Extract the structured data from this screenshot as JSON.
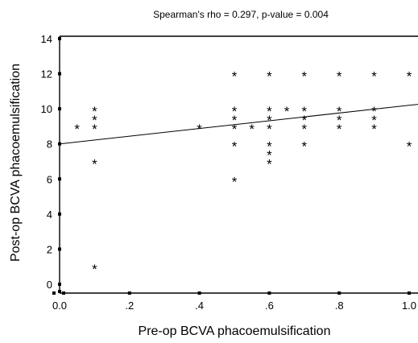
{
  "chart_data": {
    "type": "scatter",
    "title": "Spearman's rho = 0.297, p-value = 0.004",
    "xlabel": "Pre-op BCVA phacoemulsification",
    "ylabel": "Post-op BCVA phacoemulsification",
    "xlim": [
      0.0,
      1.0
    ],
    "ylim": [
      0,
      14
    ],
    "x_ticks": [
      0.0,
      0.2,
      0.4,
      0.6,
      0.8,
      1.0
    ],
    "x_tick_labels": [
      "0.0",
      ".2",
      ".4",
      ".6",
      ".8",
      "1.0"
    ],
    "y_ticks": [
      0,
      2,
      4,
      6,
      8,
      10,
      12,
      14
    ],
    "y_tick_labels": [
      "0",
      "2",
      "4",
      "6",
      "8",
      "10",
      "12",
      "14"
    ],
    "marker": "*",
    "grid": false,
    "points": [
      {
        "x": 0.05,
        "y": 9
      },
      {
        "x": 0.1,
        "y": 10
      },
      {
        "x": 0.1,
        "y": 9.5
      },
      {
        "x": 0.1,
        "y": 9
      },
      {
        "x": 0.1,
        "y": 7
      },
      {
        "x": 0.1,
        "y": 1
      },
      {
        "x": 0.4,
        "y": 9
      },
      {
        "x": 0.5,
        "y": 12
      },
      {
        "x": 0.5,
        "y": 10
      },
      {
        "x": 0.5,
        "y": 9.5
      },
      {
        "x": 0.5,
        "y": 9
      },
      {
        "x": 0.5,
        "y": 8
      },
      {
        "x": 0.5,
        "y": 6
      },
      {
        "x": 0.55,
        "y": 9
      },
      {
        "x": 0.6,
        "y": 12
      },
      {
        "x": 0.6,
        "y": 10
      },
      {
        "x": 0.6,
        "y": 9.5
      },
      {
        "x": 0.6,
        "y": 9
      },
      {
        "x": 0.6,
        "y": 8
      },
      {
        "x": 0.6,
        "y": 7.5
      },
      {
        "x": 0.6,
        "y": 7
      },
      {
        "x": 0.65,
        "y": 10
      },
      {
        "x": 0.7,
        "y": 12
      },
      {
        "x": 0.7,
        "y": 10
      },
      {
        "x": 0.7,
        "y": 9.5
      },
      {
        "x": 0.7,
        "y": 9
      },
      {
        "x": 0.7,
        "y": 8
      },
      {
        "x": 0.8,
        "y": 12
      },
      {
        "x": 0.8,
        "y": 10
      },
      {
        "x": 0.8,
        "y": 9.5
      },
      {
        "x": 0.8,
        "y": 9
      },
      {
        "x": 0.9,
        "y": 12
      },
      {
        "x": 0.9,
        "y": 10
      },
      {
        "x": 0.9,
        "y": 9.5
      },
      {
        "x": 0.9,
        "y": 9
      },
      {
        "x": 1.0,
        "y": 12
      },
      {
        "x": 1.0,
        "y": 8
      }
    ],
    "fit_line": {
      "x": [
        0.0,
        1.0
      ],
      "y": [
        8.0,
        10.2
      ]
    },
    "colors": {
      "points": "#000000",
      "axes": "#000000",
      "fit_line": "#000000"
    }
  }
}
